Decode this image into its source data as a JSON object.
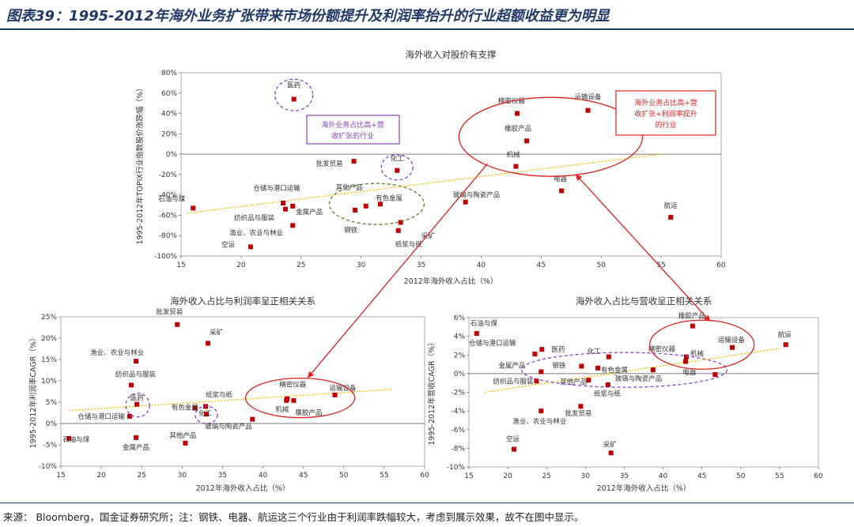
{
  "page": {
    "title": "图表39：1995-2012年海外业务扩张带来市场份额提升及利润率抬升的行业超额收益更为明显",
    "source_note": "来源： Bloomberg，国金证券研究所；注：钢铁、电器、航运这三个行业由于利润率跌幅较大，考虑到展示效果，故不在图中显示。",
    "colors": {
      "title": "#1f3864",
      "marker": "#c00000",
      "trend": "#ffc000",
      "circle_red": "#e02020",
      "circle_purple": "#8a3fc8",
      "circle_green": "#4f7f2a"
    }
  },
  "chart_data": [
    {
      "id": "top",
      "type": "scatter",
      "title": "海外收入对股价有支撑",
      "xlabel": "2012年海外收入占比（%）",
      "ylabel": "1995-2012年TOPIX行业指数股价涨跌幅（%）",
      "xlim": [
        15,
        60
      ],
      "ylim": [
        -100,
        80
      ],
      "xticks": [
        15,
        20,
        25,
        30,
        35,
        40,
        45,
        50,
        55,
        60
      ],
      "yticks": [
        -100,
        -80,
        -60,
        -40,
        -20,
        0,
        20,
        40,
        60,
        80
      ],
      "ytick_suffix": "%",
      "trend": {
        "x0": 15.5,
        "y0": -58,
        "x1": 55,
        "y1": 0
      },
      "points": [
        {
          "label": "石油与煤",
          "x": 16.0,
          "y": -53
        },
        {
          "label": "空运",
          "x": 20.8,
          "y": -91
        },
        {
          "label": "仓储与港口运输",
          "x": 23.5,
          "y": -48
        },
        {
          "label": "渔业、农业与林业",
          "x": 24.3,
          "y": -70
        },
        {
          "label": "纺织品与服装",
          "x": 23.7,
          "y": -54
        },
        {
          "label": "金属产品",
          "x": 24.3,
          "y": -51
        },
        {
          "label": "医药",
          "x": 24.4,
          "y": 54
        },
        {
          "label": "批发贸易",
          "x": 29.4,
          "y": -7
        },
        {
          "label": "钢铁",
          "x": 29.5,
          "y": -55
        },
        {
          "label": "其他产品",
          "x": 30.4,
          "y": -51
        },
        {
          "label": "有色金属",
          "x": 31.6,
          "y": -49
        },
        {
          "label": "化工",
          "x": 33.0,
          "y": -16
        },
        {
          "label": "纸浆与纸",
          "x": 33.1,
          "y": -75
        },
        {
          "label": "采矿",
          "x": 33.3,
          "y": -67
        },
        {
          "label": "玻璃与陶瓷产品",
          "x": 38.7,
          "y": -47
        },
        {
          "label": "精密仪器",
          "x": 43.0,
          "y": 40
        },
        {
          "label": "机械",
          "x": 42.9,
          "y": -12
        },
        {
          "label": "橡胶产品",
          "x": 43.8,
          "y": 13
        },
        {
          "label": "电器",
          "x": 46.7,
          "y": -36
        },
        {
          "label": "运输设备",
          "x": 48.9,
          "y": 43
        },
        {
          "label": "航运",
          "x": 55.8,
          "y": -62
        }
      ],
      "annotations": [
        {
          "text": "海外业务占比高+营",
          "color": "#8a3fc8"
        },
        {
          "text": "收扩张的行业",
          "color": "#8a3fc8"
        },
        {
          "text": "海外业务占比高+营",
          "color": "#e02020"
        },
        {
          "text": "收扩张+利润率提升",
          "color": "#e02020"
        },
        {
          "text": "的行业",
          "color": "#e02020"
        }
      ]
    },
    {
      "id": "bottom-left",
      "type": "scatter",
      "title": "海外收入占比与利润率呈正相关关系",
      "xlabel": "2012年海外收入占比（%）",
      "ylabel": "1995-2012年利润率CAGR（%）",
      "xlim": [
        15,
        60
      ],
      "ylim": [
        -10,
        25
      ],
      "xticks": [
        15,
        20,
        25,
        30,
        35,
        40,
        45,
        50,
        55,
        60
      ],
      "yticks": [
        -10,
        -5,
        0,
        5,
        10,
        15,
        20,
        25
      ],
      "ytick_suffix": "%",
      "trend": {
        "x0": 16,
        "y0": 3.0,
        "x1": 56,
        "y1": 8.0
      },
      "points": [
        {
          "label": "批发贸易",
          "x": 29.4,
          "y": 23.2
        },
        {
          "label": "采矿",
          "x": 33.2,
          "y": 18.8
        },
        {
          "label": "渔业、农业与林业",
          "x": 24.3,
          "y": 14.6
        },
        {
          "label": "纺织品与服装",
          "x": 23.7,
          "y": 9.0
        },
        {
          "label": "医药",
          "x": 24.4,
          "y": 4.5
        },
        {
          "label": "仓储与港口运输",
          "x": 23.5,
          "y": 1.7
        },
        {
          "label": "纸浆与纸",
          "x": 32.9,
          "y": 4.0
        },
        {
          "label": "有色金属",
          "x": 31.6,
          "y": 3.6
        },
        {
          "label": "化工",
          "x": 33.0,
          "y": 2.2
        },
        {
          "label": "金属产品",
          "x": 24.3,
          "y": -3.3
        },
        {
          "label": "其他产品",
          "x": 30.4,
          "y": -4.6
        },
        {
          "label": "石油与煤",
          "x": 16.0,
          "y": -3.5
        },
        {
          "label": "玻璃与陶瓷产品",
          "x": 38.7,
          "y": 1.0
        },
        {
          "label": "精密仪器",
          "x": 43.0,
          "y": 5.8
        },
        {
          "label": "机械",
          "x": 42.9,
          "y": 5.4
        },
        {
          "label": "橡胶产品",
          "x": 43.8,
          "y": 5.4
        },
        {
          "label": "运输设备",
          "x": 48.9,
          "y": 6.7
        }
      ]
    },
    {
      "id": "bottom-right",
      "type": "scatter",
      "title": "海外收入占比与营收呈正相关关系",
      "xlabel": "2012年海外收入占比（%）",
      "ylabel": "1995-2012年营收CAGR（%）",
      "xlim": [
        15,
        60
      ],
      "ylim": [
        -10,
        6
      ],
      "xticks": [
        15,
        20,
        25,
        30,
        35,
        40,
        45,
        50,
        55,
        60
      ],
      "yticks": [
        -10,
        -8,
        -6,
        -4,
        -2,
        0,
        2,
        4,
        6
      ],
      "ytick_suffix": "%",
      "trend": {
        "x0": 17,
        "y0": -2.0,
        "x1": 55,
        "y1": 2.7
      },
      "points": [
        {
          "label": "石油与煤",
          "x": 16.0,
          "y": 4.3
        },
        {
          "label": "仓储与港口运输",
          "x": 23.5,
          "y": 2.1
        },
        {
          "label": "医药",
          "x": 24.4,
          "y": 2.6
        },
        {
          "label": "金属产品",
          "x": 24.3,
          "y": 0.2
        },
        {
          "label": "钢铁",
          "x": 29.5,
          "y": 0.8
        },
        {
          "label": "化工",
          "x": 33.0,
          "y": 1.8
        },
        {
          "label": "有色金属",
          "x": 31.6,
          "y": 0.6
        },
        {
          "label": "纺织品与服装",
          "x": 23.7,
          "y": -0.8
        },
        {
          "label": "其他产品",
          "x": 30.4,
          "y": -0.7
        },
        {
          "label": "纸浆与纸",
          "x": 32.9,
          "y": -1.2
        },
        {
          "label": "玻璃与陶瓷产品",
          "x": 38.7,
          "y": 0.4
        },
        {
          "label": "渔业、农业与林业",
          "x": 24.3,
          "y": -4.0
        },
        {
          "label": "批发贸易",
          "x": 29.4,
          "y": -3.5
        },
        {
          "label": "空运",
          "x": 20.8,
          "y": -8.1
        },
        {
          "label": "采矿",
          "x": 33.3,
          "y": -8.5
        },
        {
          "label": "精密仪器",
          "x": 43.0,
          "y": 1.8
        },
        {
          "label": "机械",
          "x": 42.9,
          "y": 1.3
        },
        {
          "label": "橡胶产品",
          "x": 43.8,
          "y": 5.1
        },
        {
          "label": "运输设备",
          "x": 48.9,
          "y": 2.8
        },
        {
          "label": "电器",
          "x": 46.7,
          "y": -0.1
        },
        {
          "label": "航运",
          "x": 55.8,
          "y": 3.1
        }
      ]
    }
  ]
}
